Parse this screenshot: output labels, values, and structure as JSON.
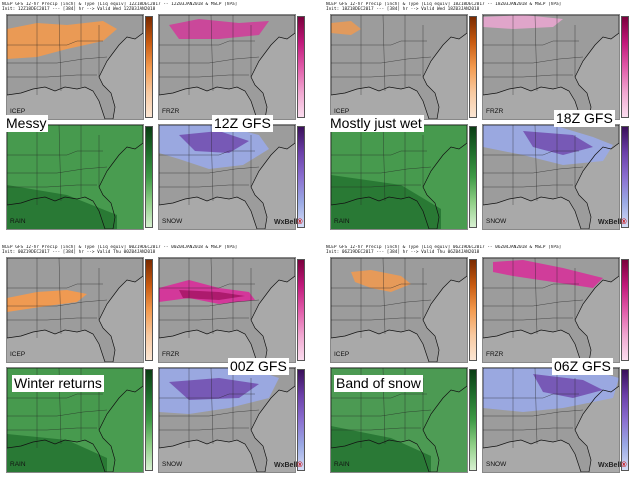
{
  "panels": {
    "icep": "ICEP",
    "frzr": "FRZR",
    "rain": "RAIN",
    "snow": "SNOW"
  },
  "brand": {
    "name": "WxBell",
    "mark": "®"
  },
  "colors": {
    "map_bg": "#9c9c9c",
    "ocean": "#a9a9a9",
    "icep": "#f39a4e",
    "frzr": "#d6339a",
    "rain_dark": "#1f6e2c",
    "rain_mid": "#3e9a46",
    "snow_light": "#9aa9e4",
    "snow_dark": "#6b3fa8"
  },
  "runs": [
    {
      "header_line1": "NCEP GFS 12-hr Precip [inch] & Type [Liq equiv] 12Z18DEC2017 -- 12Z03JAN2018 & MSLP [hPa]",
      "header_line2": "Init: 12Z18DEC2017 --- [384] hr --> Valid Wed 12Z03JAN2018",
      "label_left": "Messy",
      "label_right": "12Z GFS"
    },
    {
      "header_line1": "NCEP GFS 12-hr Precip [inch] & Type [Liq equiv] 18Z18DEC2017 -- 18Z03JAN2018 & MSLP [hPa]",
      "header_line2": "Init: 18Z18DEC2017 --- [384] hr --> Valid Wed 18Z03JAN2018",
      "label_left": "Mostly just wet",
      "label_right": "18Z GFS"
    },
    {
      "header_line1": "NCEP GFS 12-hr Precip [inch] & Type [Liq equiv] 00Z19DEC2017 -- 00Z04JAN2018 & MSLP [hPa]",
      "header_line2": "Init: 00Z19DEC2017 --- [384] hr --> Valid Thu 00Z04JAN2018",
      "label_left": "Winter returns",
      "label_right": "00Z GFS"
    },
    {
      "header_line1": "NCEP GFS 12-hr Precip [inch] & Type [Liq equiv] 06Z19DEC2017 -- 06Z04JAN2018 & MSLP [hPa]",
      "header_line2": "Init: 06Z19DEC2017 --- [384] hr --> Valid Thu 06Z04JAN2018",
      "label_left": "Band of snow",
      "label_right": "06Z GFS"
    }
  ]
}
